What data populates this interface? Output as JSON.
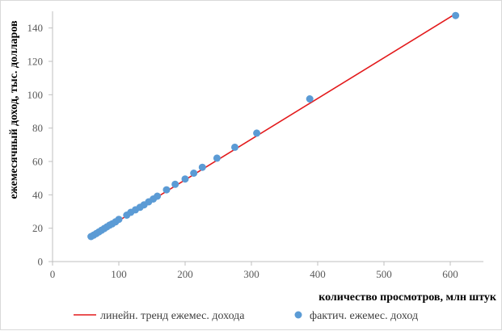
{
  "chart_data": {
    "type": "scatter",
    "title": "",
    "xlabel": "количество  просмотров, млн штук",
    "ylabel": "ежемесячный доход, тыс. долларов",
    "xlim": [
      0,
      650
    ],
    "ylim": [
      0,
      150
    ],
    "xticks": [
      0,
      100,
      200,
      300,
      400,
      500,
      600
    ],
    "yticks": [
      0,
      20,
      40,
      60,
      80,
      100,
      120,
      140
    ],
    "grid": false,
    "legend_position": "bottom",
    "series": [
      {
        "name": "линейн. тренд ежемес. дохода",
        "kind": "line",
        "color": "#e31a1c",
        "x": [
          58,
          610
        ],
        "y": [
          14.3,
          149
        ]
      },
      {
        "name": "фактич. ежемес. доход",
        "kind": "scatter",
        "color": "#5b9bd5",
        "x": [
          58,
          62,
          66,
          70,
          74,
          78,
          82,
          86,
          90,
          95,
          100,
          112,
          118,
          125,
          132,
          138,
          145,
          152,
          158,
          172,
          185,
          200,
          213,
          226,
          248,
          275,
          308,
          388,
          608
        ],
        "y": [
          15,
          15.8,
          16.8,
          17.8,
          18.8,
          19.8,
          20.8,
          21.8,
          22.6,
          23.8,
          25.3,
          27.8,
          29.5,
          31,
          32.5,
          34,
          35.8,
          37.5,
          39.2,
          43,
          46.3,
          49.5,
          53,
          56.5,
          62,
          68.5,
          77,
          97.5,
          147.5
        ]
      }
    ]
  }
}
